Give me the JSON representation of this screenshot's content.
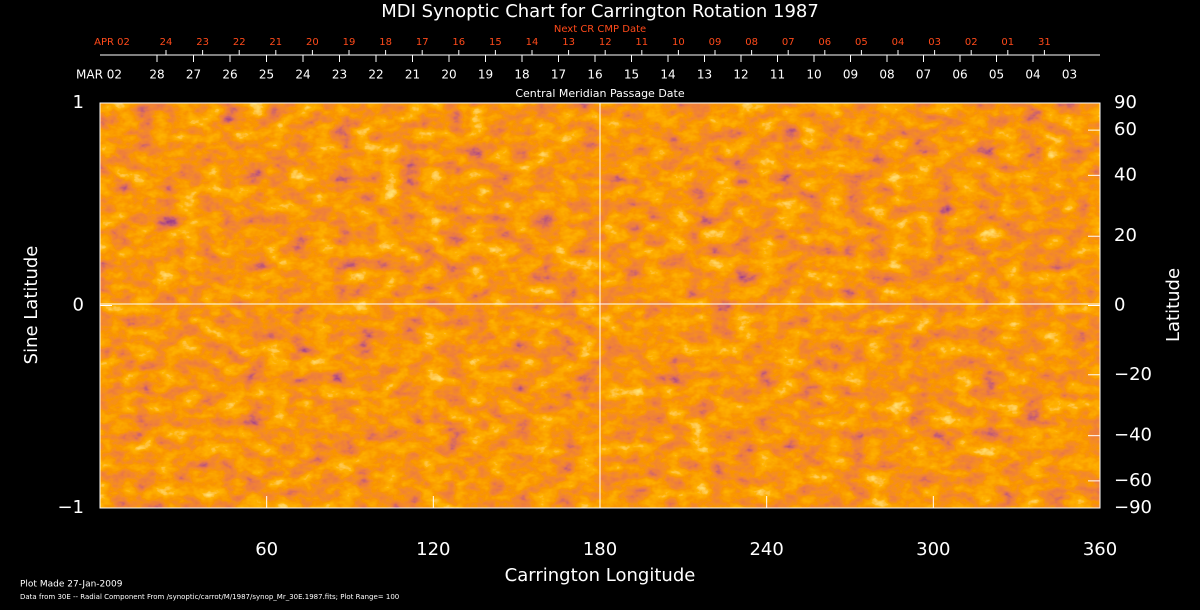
{
  "chart_data": {
    "type": "synoptic-map",
    "title": "MDI Synoptic Chart for Carrington Rotation 1987",
    "top_axis_title": "Next CR CMP Date",
    "next_cr_dates": [
      "APR 02",
      "24",
      "23",
      "22",
      "21",
      "20",
      "19",
      "18",
      "17",
      "16",
      "15",
      "14",
      "13",
      "12",
      "11",
      "10",
      "09",
      "08",
      "07",
      "06",
      "05",
      "04",
      "03",
      "02",
      "01",
      "31"
    ],
    "cmp_dates": [
      "MAR 02",
      "28",
      "27",
      "26",
      "25",
      "24",
      "23",
      "22",
      "21",
      "20",
      "19",
      "18",
      "17",
      "16",
      "15",
      "14",
      "13",
      "12",
      "11",
      "10",
      "09",
      "08",
      "07",
      "06",
      "05",
      "04",
      "03"
    ],
    "cmp_axis_title": "Central Meridian Passage Date",
    "xlabel": "Carrington Longitude",
    "ylabel": "Sine Latitude",
    "y2label": "Latitude",
    "xlim": [
      0,
      360
    ],
    "xticks": [
      60,
      120,
      180,
      240,
      300,
      360
    ],
    "ylim": [
      -1,
      1
    ],
    "yticks": [
      {
        "value": -1,
        "label": "−1"
      },
      0,
      1
    ],
    "y2lim": [
      -90,
      90
    ],
    "y2scale": "sine",
    "y2ticks": [
      90,
      60,
      40,
      20,
      0,
      {
        "value": -20,
        "label": "−20"
      },
      {
        "value": -40,
        "label": "−40"
      },
      {
        "value": -60,
        "label": "−60"
      },
      {
        "value": -90,
        "label": "−90"
      }
    ],
    "footer": [
      "Plot Made 27-Jan-2009",
      "Data from 30E -- Radial Component From /synoptic/carrot/M/1987/synop_Mr_30E.1987.fits; Plot Range=  100"
    ]
  }
}
